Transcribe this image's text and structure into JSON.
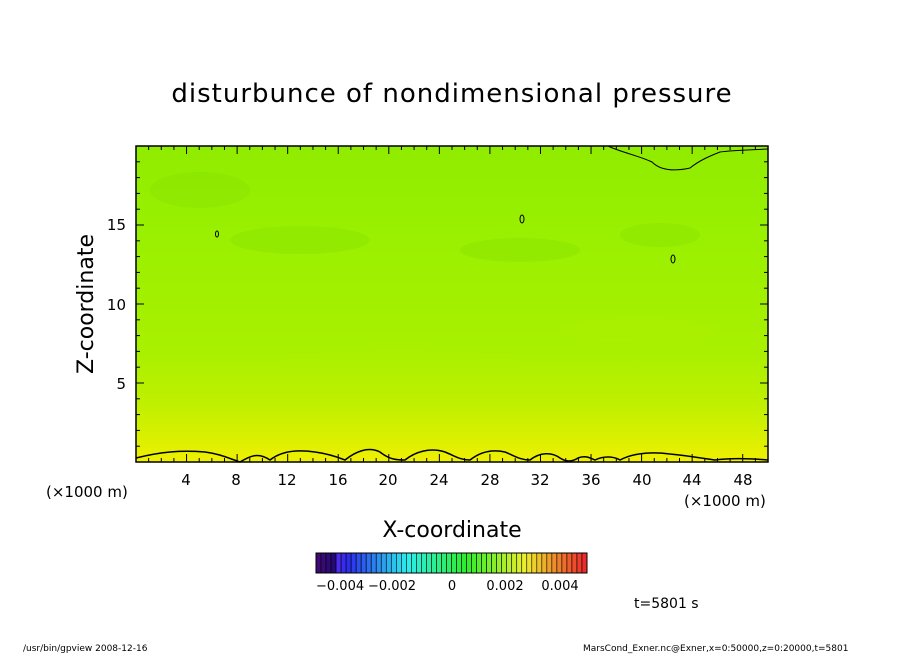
{
  "chart_data": {
    "type": "heatmap",
    "title": "disturbunce of nondimensional pressure",
    "xlabel": "X-coordinate",
    "ylabel": "Z-coordinate",
    "x_unit_left": "(×1000 m)",
    "x_unit_right": "(×1000 m)",
    "xlim": [
      0,
      50
    ],
    "ylim": [
      0,
      20
    ],
    "xticks": [
      "4",
      "8",
      "12",
      "16",
      "20",
      "24",
      "28",
      "32",
      "36",
      "40",
      "44",
      "48"
    ],
    "yticks": [
      "5",
      "10",
      "15"
    ],
    "colorbar": {
      "ticks": [
        "−0.004",
        "−0.002",
        "0",
        "0.002",
        "0.004"
      ],
      "range": [
        -0.005,
        0.005
      ]
    },
    "field_levels": [
      {
        "z": 0.5,
        "color": "#f0f000"
      },
      {
        "z": 1.5,
        "color": "#d8f000"
      },
      {
        "z": 3,
        "color": "#c0f000"
      },
      {
        "z": 6,
        "color": "#a8f000"
      },
      {
        "z": 12,
        "color": "#9af000"
      },
      {
        "z": 18,
        "color": "#90ec00"
      },
      {
        "z": 20,
        "color": "#88e800"
      }
    ],
    "time_label": "t=5801 s",
    "footer_left": "/usr/bin/gpview   2008-12-16",
    "footer_right": "MarsCond_Exner.nc@Exner,x=0:50000,z=0:20000,t=5801"
  }
}
